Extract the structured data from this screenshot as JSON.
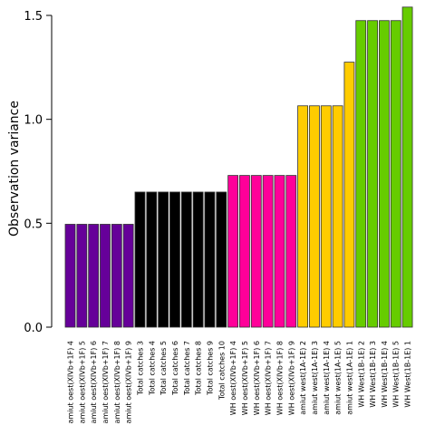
{
  "chart_data": {
    "type": "bar",
    "ylabel": "Observation variance",
    "xlabel": "",
    "title": "",
    "ylim": [
      0,
      1.5
    ],
    "yticks": [
      "0.0",
      "0.5",
      "1.0",
      "1.5"
    ],
    "grid": false,
    "categories": [
      "amiut   oest(XIVb+1F) 4",
      "amiut   oest(XIVb+1F) 5",
      "amiut   oest(XIVb+1F) 6",
      "amiut   oest(XIVb+1F) 7",
      "amiut   oest(XIVb+1F) 8",
      "amiut   oest(XIVb+1F) 9",
      "Total catches 3",
      "Total catches 4",
      "Total catches 5",
      "Total catches 6",
      "Total catches 7",
      "Total catches 8",
      "Total catches 9",
      "Total catches 10",
      "WH   oest(XIVb+1F) 4",
      "WH   oest(XIVb+1F) 5",
      "WH   oest(XIVb+1F) 6",
      "WH   oest(XIVb+1F) 7",
      "WH   oest(XIVb+1F) 8",
      "WH   oest(XIVb+1F) 9",
      "amiut   west(1A-1E) 2",
      "amiut   west(1A-1E) 3",
      "amiut   west(1A-1E) 4",
      "amiut   west(1A-1E) 5",
      "amiut   west(1A-1E) 1",
      "WH   West(1B-1E) 2",
      "WH   West(1B-1E) 3",
      "WH   West(1B-1E) 4",
      "WH   West(1B-1E) 5",
      "WH   West(1B-1E) 1"
    ],
    "values": [
      0.495,
      0.495,
      0.495,
      0.495,
      0.495,
      0.495,
      0.65,
      0.65,
      0.65,
      0.65,
      0.65,
      0.65,
      0.65,
      0.65,
      0.73,
      0.73,
      0.73,
      0.73,
      0.73,
      0.73,
      1.065,
      1.065,
      1.065,
      1.065,
      1.275,
      1.475,
      1.475,
      1.475,
      1.475,
      1.54
    ],
    "colors": [
      "#660099",
      "#660099",
      "#660099",
      "#660099",
      "#660099",
      "#660099",
      "#000000",
      "#000000",
      "#000000",
      "#000000",
      "#000000",
      "#000000",
      "#000000",
      "#000000",
      "#ff0099",
      "#ff0099",
      "#ff0099",
      "#ff0099",
      "#ff0099",
      "#ff0099",
      "#ffcc00",
      "#ffcc00",
      "#ffcc00",
      "#ffcc00",
      "#ffcc00",
      "#66cc00",
      "#66cc00",
      "#66cc00",
      "#66cc00",
      "#66cc00"
    ]
  }
}
